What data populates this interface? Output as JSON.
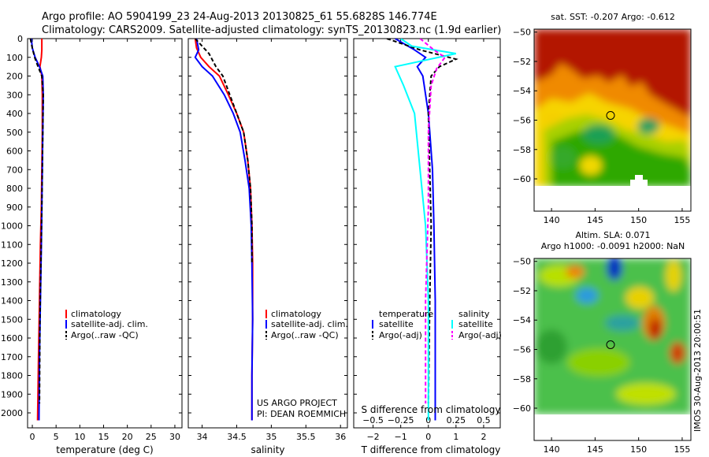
{
  "header": {
    "line1": "Argo profile: AO 5904199_23 24-Aug-2013 20130825_61 55.6828S 146.774E",
    "line2": "Climatology: CARS2009. Satellite-adjusted climatology: synTS_20130823.nc (1.9d earlier)"
  },
  "colors": {
    "climatology": "#ff0000",
    "satellite": "#0000ff",
    "argo": "#000000",
    "satellite_s": "#00ffff",
    "argo_s": "#ff00ff"
  },
  "legend_ts": [
    "climatology",
    "satellite-adj. clim.",
    "Argo(..raw -QC)"
  ],
  "legend_diff": {
    "temp_title": "temperature",
    "sal_title": "salinity",
    "temp_items": [
      "satellite",
      "Argo(-adj)"
    ],
    "sal_items": [
      "satellite",
      "Argo(-adj)"
    ]
  },
  "credits": [
    "US ARGO PROJECT",
    "PI: DEAN ROEMMICH"
  ],
  "map_titles": {
    "sst": "sat. SST: -0.207 Argo: -0.612",
    "sla1": "Altim. SLA: 0.071",
    "sla2": "Argo h1000: -0.0091 h2000: NaN"
  },
  "imos_stamp": "IMOS 30-Aug-2013 20:00:51",
  "chart_data": [
    {
      "type": "line",
      "panel": "temperature",
      "xlabel": "temperature (deg C)",
      "ylabel": "",
      "xlim": [
        -1,
        31.5
      ],
      "ylim": [
        2080,
        0
      ],
      "xticks": [
        0,
        5,
        10,
        15,
        20,
        25,
        30
      ],
      "yticks": [
        0,
        100,
        200,
        300,
        400,
        500,
        600,
        700,
        800,
        900,
        1000,
        1100,
        1200,
        1300,
        1400,
        1500,
        1600,
        1700,
        1800,
        1900,
        2000
      ],
      "series": [
        {
          "name": "climatology",
          "x": [
            2.0,
            2.0,
            1.9,
            1.6,
            2.0,
            2.1,
            2.1,
            2.0,
            1.9,
            1.7,
            1.5,
            1.3,
            1.1
          ],
          "y": [
            0,
            60,
            100,
            150,
            200,
            300,
            500,
            700,
            900,
            1100,
            1400,
            1700,
            2040
          ]
        },
        {
          "name": "satellite-adj. clim.",
          "x": [
            -0.2,
            0.0,
            0.6,
            1.5,
            2.2,
            2.3,
            2.2,
            2.1,
            2.0,
            1.9,
            1.7,
            1.5,
            1.4
          ],
          "y": [
            0,
            50,
            100,
            150,
            200,
            300,
            500,
            700,
            900,
            1100,
            1400,
            1700,
            2040
          ]
        },
        {
          "name": "Argo(..raw -QC)",
          "x": [
            -0.4,
            0.0,
            0.5,
            1.2,
            2.0,
            2.3,
            2.2,
            2.1,
            2.0,
            1.8,
            1.6,
            1.5
          ],
          "y": [
            0,
            50,
            100,
            150,
            200,
            300,
            500,
            700,
            900,
            1200,
            1500,
            1950
          ]
        }
      ]
    },
    {
      "type": "line",
      "panel": "salinity",
      "xlabel": "salinity",
      "ylabel": "",
      "xlim": [
        33.8,
        36.1
      ],
      "ylim": [
        2080,
        0
      ],
      "xticks": [
        34,
        34.5,
        35,
        35.5,
        36
      ],
      "series": [
        {
          "name": "climatology",
          "x": [
            33.9,
            33.92,
            33.98,
            34.1,
            34.25,
            34.38,
            34.5,
            34.6,
            34.66,
            34.7,
            34.72,
            34.73,
            34.73,
            34.72,
            34.72
          ],
          "y": [
            0,
            50,
            100,
            150,
            200,
            300,
            400,
            500,
            650,
            800,
            1000,
            1200,
            1500,
            1800,
            2040
          ]
        },
        {
          "name": "satellite-adj. clim.",
          "x": [
            33.92,
            33.95,
            33.9,
            34.0,
            34.15,
            34.32,
            34.45,
            34.55,
            34.62,
            34.68,
            34.71,
            34.72,
            34.73,
            34.72,
            34.72
          ],
          "y": [
            0,
            60,
            100,
            150,
            200,
            300,
            400,
            500,
            650,
            800,
            1000,
            1200,
            1500,
            1800,
            2040
          ]
        },
        {
          "name": "Argo(..raw -QC)",
          "x": [
            33.9,
            34.1,
            34.2,
            34.3,
            34.4,
            34.5,
            34.6,
            34.66,
            34.7,
            34.72,
            34.72
          ],
          "y": [
            0,
            80,
            150,
            200,
            300,
            400,
            500,
            650,
            800,
            1000,
            1200
          ]
        }
      ]
    },
    {
      "type": "line",
      "panel": "difference",
      "xlabel": "T difference from climatology",
      "xlabel2": "S difference from climatology",
      "xlim": [
        -2.7,
        2.6
      ],
      "ylim": [
        2080,
        0
      ],
      "xticks": [
        -2,
        -1,
        0,
        1,
        2
      ],
      "xticks2": [
        "-0.5",
        "-0.25",
        "0",
        "0.25",
        "0.5"
      ],
      "series": [
        {
          "name": "temperature satellite",
          "x": [
            -1.2,
            -0.5,
            -0.1,
            -0.4,
            -0.2,
            0.0,
            0.15,
            0.2,
            0.25,
            0.25,
            0.25
          ],
          "y": [
            0,
            60,
            100,
            150,
            200,
            400,
            700,
            1000,
            1400,
            1800,
            2040
          ]
        },
        {
          "name": "temperature Argo(-adj)",
          "x": [
            -1.5,
            -0.3,
            1.0,
            0.4,
            0.1,
            0.0,
            0.05,
            0.1,
            0.05,
            0.0
          ],
          "y": [
            0,
            60,
            110,
            150,
            200,
            400,
            700,
            1000,
            1400,
            1950
          ]
        },
        {
          "name": "salinity satellite",
          "x": [
            -1.0,
            -0.6,
            1.0,
            -1.2,
            -0.9,
            -0.5,
            -0.3,
            -0.1,
            0.0,
            0.0,
            0.0
          ],
          "y": [
            0,
            40,
            80,
            150,
            250,
            400,
            700,
            1000,
            1400,
            1800,
            2040
          ]
        },
        {
          "name": "salinity Argo(-adj)",
          "x": [
            -0.3,
            0.2,
            0.6,
            0.3,
            0.1,
            0.0,
            0.0,
            -0.1,
            -0.1
          ],
          "y": [
            0,
            60,
            100,
            160,
            250,
            500,
            900,
            1400,
            1950
          ]
        }
      ]
    },
    {
      "type": "heatmap",
      "panel": "sst_map",
      "title": "sat. SST: -0.207 Argo: -0.612",
      "xticks": [
        140,
        145,
        150,
        155
      ],
      "yticks": [
        -50,
        -52,
        -54,
        -56,
        -58,
        -60
      ],
      "marker": {
        "lon": 146.77,
        "lat": -55.68
      }
    },
    {
      "type": "heatmap",
      "panel": "sla_map",
      "title": "Altim. SLA: 0.071",
      "xticks": [
        140,
        145,
        150,
        155
      ],
      "yticks": [
        -50,
        -52,
        -54,
        -56,
        -58,
        -60
      ],
      "marker": {
        "lon": 146.77,
        "lat": -55.68
      }
    }
  ]
}
